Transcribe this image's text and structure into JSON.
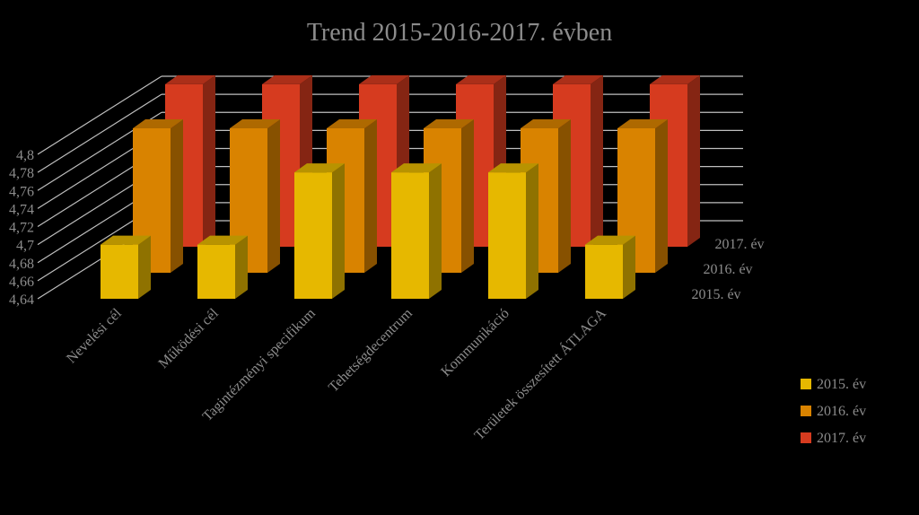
{
  "chart_data": {
    "type": "bar",
    "subtype": "3d-clustered-depth",
    "title": "Trend 2015-2016-2017. évben",
    "categories": [
      "Nevelési cél",
      "Működési cél",
      "Tagintézményi specifikum",
      "Tehetségdecentrum",
      "Kommunikáció",
      "Területek összesített ÁTLAGA"
    ],
    "series": [
      {
        "name": "2015. év",
        "color": "#e6b800",
        "values": [
          4.7,
          4.7,
          4.78,
          4.78,
          4.78,
          4.7
        ]
      },
      {
        "name": "2016. év",
        "color": "#d98300",
        "values": [
          4.8,
          4.8,
          4.8,
          4.8,
          4.8,
          4.8
        ]
      },
      {
        "name": "2017. év",
        "color": "#d63b1f",
        "values": [
          4.82,
          4.82,
          4.82,
          4.82,
          4.82,
          4.82
        ]
      }
    ],
    "y_axis": {
      "ticks": [
        "4,64",
        "4,66",
        "4,68",
        "4,7",
        "4,72",
        "4,74",
        "4,76",
        "4,78",
        "4,8"
      ],
      "ylim": [
        4.64,
        4.8
      ]
    },
    "depth_labels": [
      "2015. év",
      "2016. év",
      "2017. év"
    ],
    "grid": true,
    "legend_position": "bottom-right",
    "background": "#000000",
    "text_color": "#8c8c8c"
  }
}
